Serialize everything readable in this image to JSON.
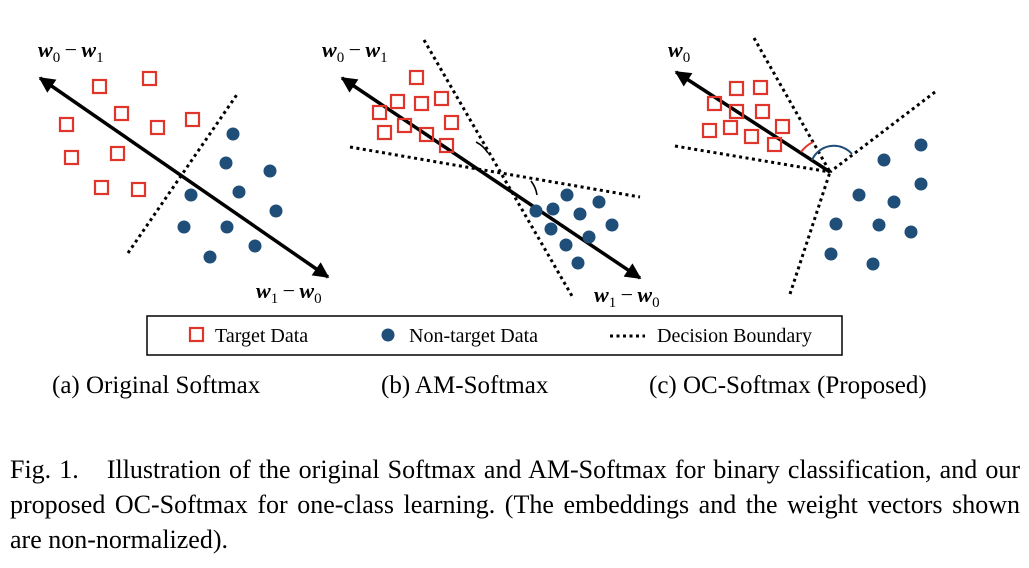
{
  "figure": {
    "panels": [
      {
        "id": "a",
        "title": "(a) Original Softmax",
        "label_top": {
          "vec": "w",
          "sub": "0",
          "op": " − ",
          "vec2": "w",
          "sub2": "1"
        },
        "label_bottom": {
          "vec": "w",
          "sub": "1",
          "op": " − ",
          "vec2": "w",
          "sub2": "0"
        }
      },
      {
        "id": "b",
        "title": "(b) AM-Softmax",
        "label_top": {
          "vec": "w",
          "sub": "0",
          "op": " − ",
          "vec2": "w",
          "sub2": "1"
        },
        "label_bottom": {
          "vec": "w",
          "sub": "1",
          "op": " − ",
          "vec2": "w",
          "sub2": "0"
        }
      },
      {
        "id": "c",
        "title": "(c) OC-Softmax (Proposed)",
        "label_top": {
          "vec": "w",
          "sub": "0"
        }
      }
    ],
    "legend": {
      "target": "Target Data",
      "non_target": "Non-target Data",
      "boundary": "Decision Boundary"
    },
    "colors": {
      "target": "#e0352b",
      "non_target": "#1f4e79",
      "arc_red": "#e0352b",
      "arc_blue": "#1f4e79",
      "line": "#000000"
    }
  },
  "caption": {
    "label": "Fig. 1.",
    "text": "Illustration of the original Softmax and AM-Softmax for binary classification, and our proposed OC-Softmax for one-class learning. (The embeddings and the weight vectors shown are non-normalized)."
  }
}
